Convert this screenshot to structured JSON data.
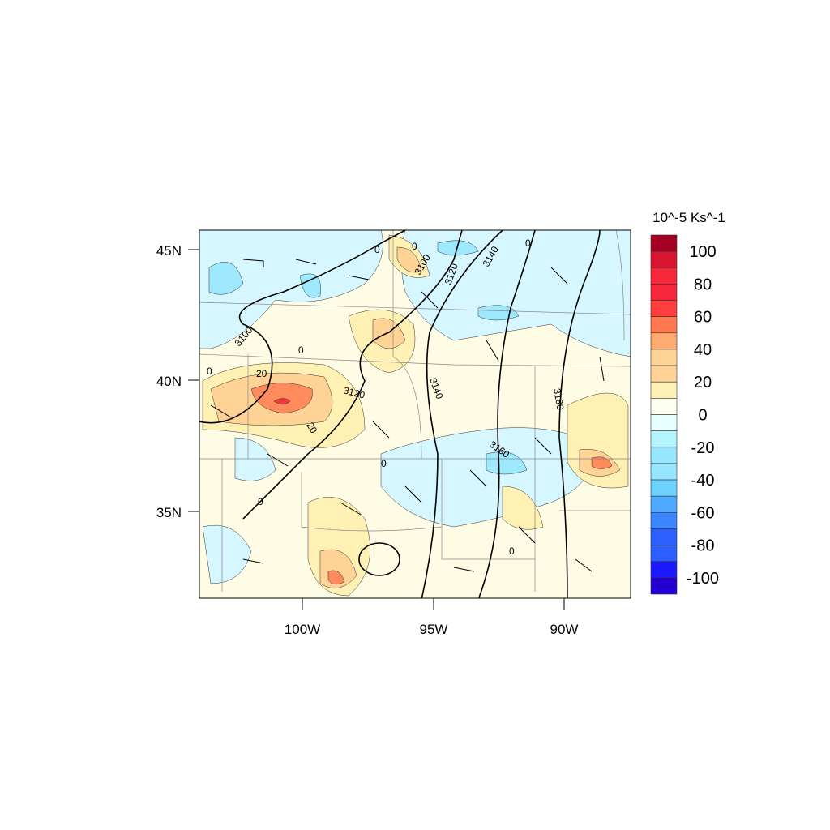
{
  "colorbar": {
    "title": "10^-5 Ks^-1",
    "labels": [
      "100",
      "80",
      "60",
      "40",
      "20",
      "0",
      "-20",
      "-40",
      "-60",
      "-80",
      "-100"
    ],
    "colors": [
      "#a50021",
      "#d8152f",
      "#f6263b",
      "#f6263b",
      "#ff3e3e",
      "#ff7850",
      "#ffaa6e",
      "#ffd296",
      "#ffd296",
      "#fff0b4",
      "#fffff0",
      "#e6ffff",
      "#b4f5ff",
      "#96e6ff",
      "#96e6ff",
      "#6ed2ff",
      "#50aaff",
      "#3c87ff",
      "#2b5fff",
      "#2b5fff",
      "#1a19ff",
      "#2200d0"
    ]
  },
  "axes": {
    "lat_ticks": [
      "45N",
      "40N",
      "35N"
    ],
    "lon_ticks": [
      "100W",
      "95W",
      "90W"
    ]
  },
  "contour_labels": [
    "3100",
    "3100",
    "3120",
    "3120",
    "3140",
    "3140",
    "3160",
    "3180",
    "0",
    "0",
    "0",
    "0",
    "0",
    "0",
    "0",
    "0",
    "20",
    "20"
  ]
}
